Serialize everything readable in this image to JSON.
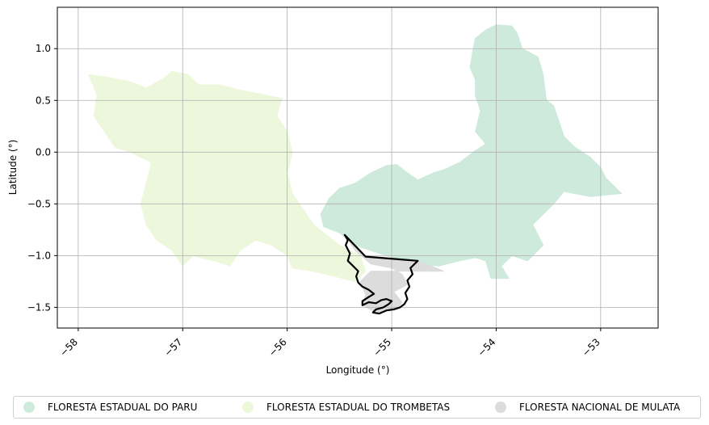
{
  "chart_data": {
    "type": "map",
    "xlabel": "Longitude (°)",
    "ylabel": "Latitude (°)",
    "xlim": [
      -58.2,
      -52.45
    ],
    "ylim": [
      -1.7,
      1.4
    ],
    "xticks": [
      -58,
      -57,
      -56,
      -55,
      -54,
      -53
    ],
    "xtick_labels": [
      "−58",
      "−57",
      "−56",
      "−55",
      "−54",
      "−53"
    ],
    "yticks": [
      1.0,
      0.5,
      0.0,
      -0.5,
      -1.0,
      -1.5
    ],
    "ytick_labels": [
      "1.0",
      "0.5",
      "0.0",
      "−0.5",
      "−1.0",
      "−1.5"
    ],
    "grid": true,
    "legend_position": "bottom",
    "areas": [
      {
        "name": "FLORESTA ESTADUAL DO PARU",
        "color": "#cdeadc",
        "polygon": [
          [
            -54.2,
            1.1
          ],
          [
            -54.1,
            1.18
          ],
          [
            -54.0,
            1.23
          ],
          [
            -53.85,
            1.22
          ],
          [
            -53.8,
            1.15
          ],
          [
            -53.75,
            1.0
          ],
          [
            -53.6,
            0.92
          ],
          [
            -53.55,
            0.75
          ],
          [
            -53.52,
            0.5
          ],
          [
            -53.45,
            0.45
          ],
          [
            -53.4,
            0.3
          ],
          [
            -53.35,
            0.15
          ],
          [
            -53.25,
            0.05
          ],
          [
            -53.1,
            -0.05
          ],
          [
            -53.0,
            -0.15
          ],
          [
            -52.95,
            -0.25
          ],
          [
            -52.8,
            -0.4
          ],
          [
            -53.1,
            -0.43
          ],
          [
            -53.35,
            -0.38
          ],
          [
            -53.45,
            -0.5
          ],
          [
            -53.55,
            -0.6
          ],
          [
            -53.65,
            -0.7
          ],
          [
            -53.55,
            -0.9
          ],
          [
            -53.7,
            -1.05
          ],
          [
            -53.85,
            -1.0
          ],
          [
            -53.95,
            -1.1
          ],
          [
            -53.88,
            -1.22
          ],
          [
            -54.05,
            -1.22
          ],
          [
            -54.1,
            -1.05
          ],
          [
            -54.2,
            -1.02
          ],
          [
            -54.35,
            -1.05
          ],
          [
            -54.55,
            -1.1
          ],
          [
            -54.8,
            -1.08
          ],
          [
            -55.05,
            -1.0
          ],
          [
            -55.2,
            -0.95
          ],
          [
            -55.35,
            -0.9
          ],
          [
            -55.5,
            -0.78
          ],
          [
            -55.65,
            -0.72
          ],
          [
            -55.68,
            -0.6
          ],
          [
            -55.6,
            -0.45
          ],
          [
            -55.5,
            -0.35
          ],
          [
            -55.35,
            -0.3
          ],
          [
            -55.2,
            -0.2
          ],
          [
            -55.05,
            -0.13
          ],
          [
            -54.95,
            -0.12
          ],
          [
            -54.85,
            -0.2
          ],
          [
            -54.75,
            -0.27
          ],
          [
            -54.6,
            -0.2
          ],
          [
            -54.5,
            -0.17
          ],
          [
            -54.35,
            -0.1
          ],
          [
            -54.22,
            0.0
          ],
          [
            -54.1,
            0.08
          ],
          [
            -54.2,
            0.2
          ],
          [
            -54.15,
            0.4
          ],
          [
            -54.2,
            0.55
          ],
          [
            -54.2,
            0.7
          ],
          [
            -54.25,
            0.82
          ],
          [
            -54.22,
            1.0
          ]
        ]
      },
      {
        "name": "FLORESTA ESTADUAL DO TROMBETAS",
        "color": "#edf7dc",
        "polygon": [
          [
            -57.9,
            0.75
          ],
          [
            -57.7,
            0.72
          ],
          [
            -57.5,
            0.68
          ],
          [
            -57.35,
            0.62
          ],
          [
            -57.2,
            0.7
          ],
          [
            -57.1,
            0.78
          ],
          [
            -56.95,
            0.75
          ],
          [
            -56.85,
            0.65
          ],
          [
            -56.65,
            0.65
          ],
          [
            -56.45,
            0.6
          ],
          [
            -56.2,
            0.55
          ],
          [
            -56.05,
            0.52
          ],
          [
            -56.1,
            0.35
          ],
          [
            -56.0,
            0.2
          ],
          [
            -55.95,
            0.0
          ],
          [
            -56.0,
            -0.2
          ],
          [
            -55.95,
            -0.4
          ],
          [
            -55.85,
            -0.55
          ],
          [
            -55.75,
            -0.7
          ],
          [
            -55.6,
            -0.82
          ],
          [
            -55.5,
            -0.9
          ],
          [
            -55.4,
            -0.95
          ],
          [
            -55.3,
            -1.0
          ],
          [
            -55.25,
            -1.15
          ],
          [
            -55.35,
            -1.25
          ],
          [
            -55.55,
            -1.2
          ],
          [
            -55.75,
            -1.15
          ],
          [
            -55.95,
            -1.12
          ],
          [
            -56.0,
            -1.0
          ],
          [
            -56.15,
            -0.9
          ],
          [
            -56.3,
            -0.85
          ],
          [
            -56.45,
            -0.95
          ],
          [
            -56.55,
            -1.1
          ],
          [
            -56.7,
            -1.05
          ],
          [
            -56.9,
            -1.0
          ],
          [
            -57.0,
            -1.1
          ],
          [
            -57.1,
            -0.95
          ],
          [
            -57.25,
            -0.85
          ],
          [
            -57.35,
            -0.7
          ],
          [
            -57.4,
            -0.5
          ],
          [
            -57.35,
            -0.3
          ],
          [
            -57.3,
            -0.1
          ],
          [
            -57.5,
            0.0
          ],
          [
            -57.65,
            0.05
          ],
          [
            -57.75,
            0.2
          ],
          [
            -57.85,
            0.35
          ],
          [
            -57.82,
            0.55
          ]
        ]
      },
      {
        "name": "FLORESTA NACIONAL DE MULATA",
        "color": "#dcdcdc",
        "polygon": [
          [
            -55.45,
            -0.8
          ],
          [
            -55.25,
            -1.0
          ],
          [
            -54.75,
            -1.05
          ],
          [
            -54.5,
            -1.15
          ],
          [
            -55.2,
            -1.15
          ],
          [
            -55.3,
            -1.25
          ],
          [
            -55.25,
            -1.38
          ],
          [
            -55.28,
            -1.48
          ],
          [
            -55.15,
            -1.55
          ],
          [
            -54.95,
            -1.52
          ],
          [
            -54.9,
            -1.45
          ],
          [
            -54.98,
            -1.35
          ],
          [
            -54.85,
            -1.28
          ],
          [
            -54.9,
            -1.18
          ],
          [
            -55.0,
            -1.12
          ],
          [
            -55.2,
            -1.08
          ],
          [
            -55.35,
            -0.95
          ]
        ]
      }
    ],
    "outline": [
      [
        -55.45,
        -0.8
      ],
      [
        -55.25,
        -1.01
      ],
      [
        -54.75,
        -1.05
      ],
      [
        -54.78,
        -1.08
      ],
      [
        -54.82,
        -1.12
      ],
      [
        -54.8,
        -1.18
      ],
      [
        -54.85,
        -1.24
      ],
      [
        -54.83,
        -1.3
      ],
      [
        -54.87,
        -1.36
      ],
      [
        -54.85,
        -1.42
      ],
      [
        -54.88,
        -1.47
      ],
      [
        -54.92,
        -1.5
      ],
      [
        -54.98,
        -1.52
      ],
      [
        -55.05,
        -1.53
      ],
      [
        -55.12,
        -1.56
      ],
      [
        -55.18,
        -1.55
      ],
      [
        -55.15,
        -1.52
      ],
      [
        -55.08,
        -1.5
      ],
      [
        -55.03,
        -1.47
      ],
      [
        -55.0,
        -1.44
      ],
      [
        -55.05,
        -1.42
      ],
      [
        -55.1,
        -1.43
      ],
      [
        -55.15,
        -1.46
      ],
      [
        -55.22,
        -1.45
      ],
      [
        -55.28,
        -1.48
      ],
      [
        -55.28,
        -1.44
      ],
      [
        -55.22,
        -1.4
      ],
      [
        -55.17,
        -1.37
      ],
      [
        -55.22,
        -1.33
      ],
      [
        -55.28,
        -1.3
      ],
      [
        -55.32,
        -1.26
      ],
      [
        -55.34,
        -1.2
      ],
      [
        -55.32,
        -1.15
      ],
      [
        -55.37,
        -1.1
      ],
      [
        -55.42,
        -1.05
      ],
      [
        -55.4,
        -0.98
      ],
      [
        -55.44,
        -0.9
      ],
      [
        -55.42,
        -0.85
      ]
    ]
  }
}
